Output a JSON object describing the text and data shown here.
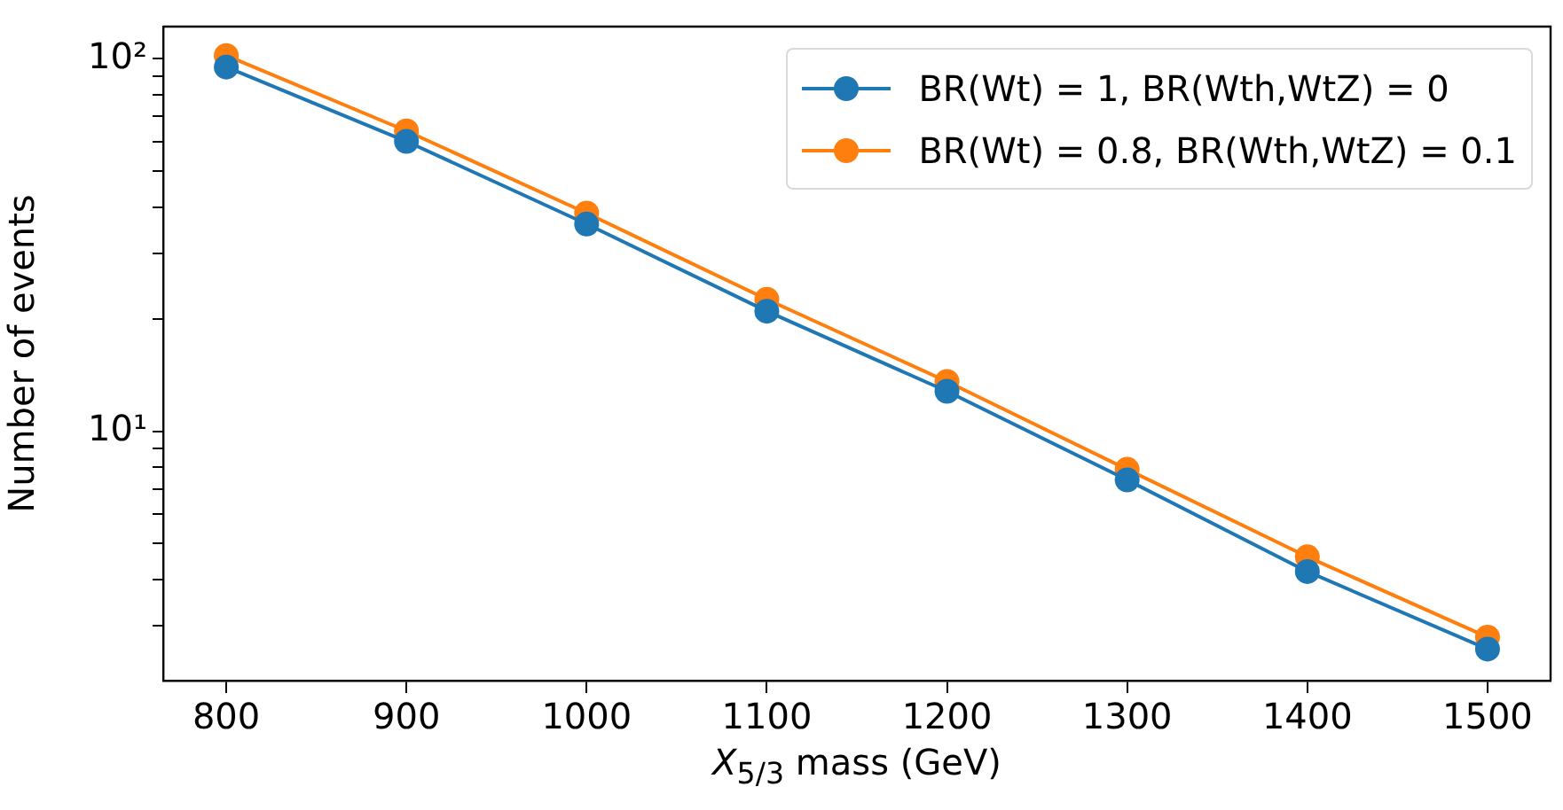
{
  "chart_data": {
    "type": "line",
    "xlabel": "X$_{5/3}$ mass (GeV)",
    "ylabel": "Number of events",
    "x": [
      800,
      900,
      1000,
      1100,
      1200,
      1300,
      1400,
      1500
    ],
    "series": [
      {
        "name": "BR(Wt) = 1, BR(Wth,WtZ) = 0",
        "color": "#1f77b4",
        "values": [
          95,
          60,
          36,
          21,
          12.8,
          7.4,
          4.2,
          2.6
        ]
      },
      {
        "name": "BR(Wt) = 0.8, BR(Wth,WtZ) = 0.1",
        "color": "#ff7f0e",
        "values": [
          102,
          64,
          38.5,
          22.6,
          13.6,
          7.9,
          4.6,
          2.8
        ]
      }
    ],
    "xlim": [
      765,
      1535
    ],
    "xticks": [
      800,
      900,
      1000,
      1100,
      1200,
      1300,
      1400,
      1500
    ],
    "ylim": [
      2.14,
      122
    ],
    "yticks": [
      {
        "value": 3,
        "label": null
      },
      {
        "value": 4,
        "label": null
      },
      {
        "value": 5,
        "label": null
      },
      {
        "value": 6,
        "label": null
      },
      {
        "value": 7,
        "label": null
      },
      {
        "value": 8,
        "label": null
      },
      {
        "value": 9,
        "label": null
      },
      {
        "value": 10,
        "label": "10¹"
      },
      {
        "value": 20,
        "label": null
      },
      {
        "value": 30,
        "label": null
      },
      {
        "value": 40,
        "label": null
      },
      {
        "value": 50,
        "label": null
      },
      {
        "value": 60,
        "label": null
      },
      {
        "value": 70,
        "label": null
      },
      {
        "value": 80,
        "label": null
      },
      {
        "value": 90,
        "label": null
      },
      {
        "value": 100,
        "label": "10²"
      }
    ],
    "log": "y",
    "grid": false,
    "legend": "top right",
    "marker": "circle",
    "line_style": "solid"
  }
}
